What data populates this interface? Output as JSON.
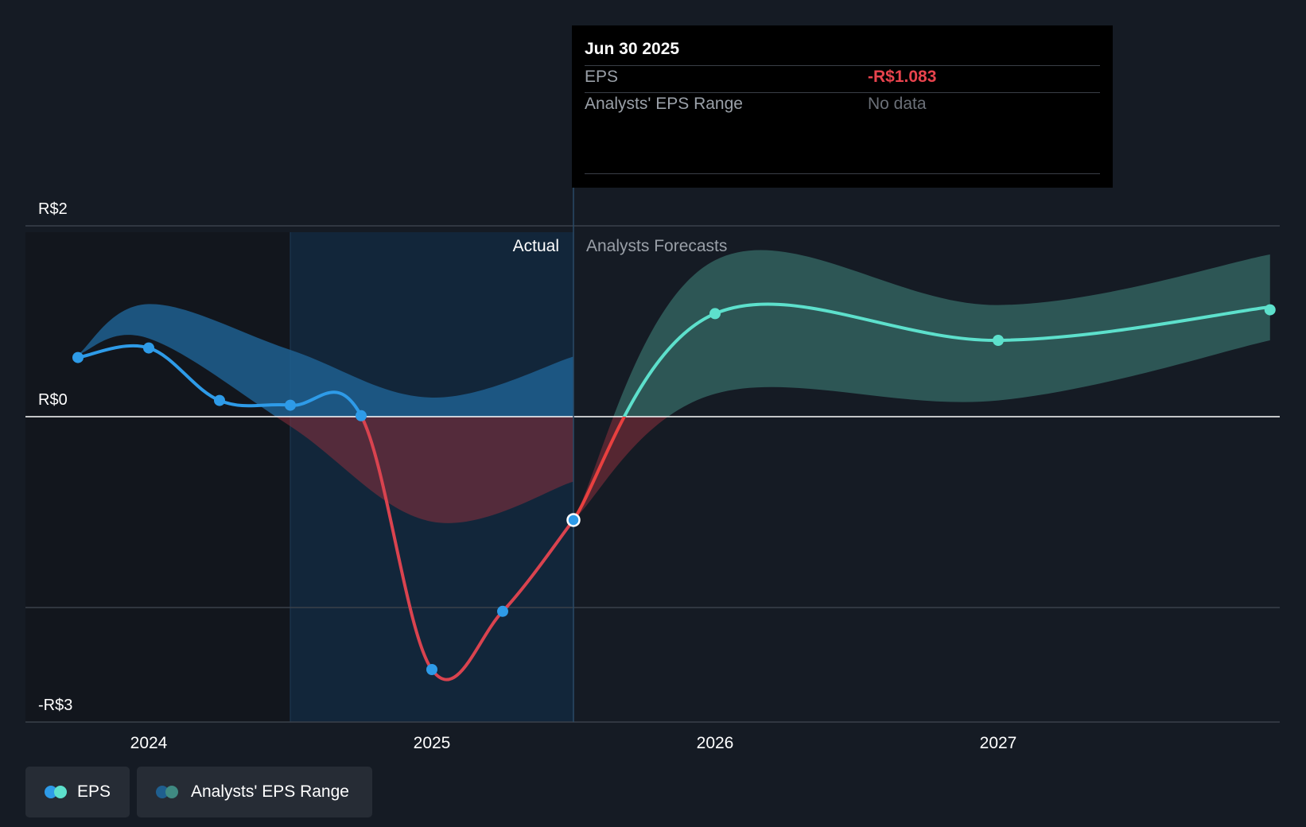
{
  "chart_data": {
    "type": "line",
    "title": "",
    "y_axis": {
      "min": -3,
      "max": 2,
      "ticks": [
        {
          "value": 2,
          "label": "R$2"
        },
        {
          "value": 0,
          "label": "R$0"
        },
        {
          "value": -3,
          "label": "-R$3"
        }
      ]
    },
    "x_axis": {
      "start": 2023.7,
      "end": 2027.95,
      "ticks": [
        {
          "value": 2024,
          "label": "2024"
        },
        {
          "value": 2025,
          "label": "2025"
        },
        {
          "value": 2026,
          "label": "2026"
        },
        {
          "value": 2027,
          "label": "2027"
        }
      ]
    },
    "shaded_region_start": 2024.5,
    "divider_x": 2025.5,
    "region_labels": {
      "actual": "Actual",
      "forecast": "Analysts Forecasts"
    },
    "series": [
      {
        "name": "EPS",
        "kind": "actual",
        "points": [
          {
            "x": 2023.75,
            "y": 0.62
          },
          {
            "x": 2024.0,
            "y": 0.72
          },
          {
            "x": 2024.25,
            "y": 0.17
          },
          {
            "x": 2024.5,
            "y": 0.12
          },
          {
            "x": 2024.75,
            "y": 0.01
          },
          {
            "x": 2025.0,
            "y": -2.65
          },
          {
            "x": 2025.25,
            "y": -2.04
          },
          {
            "x": 2025.5,
            "y": -1.083
          }
        ]
      },
      {
        "name": "EPS",
        "kind": "forecast",
        "points": [
          {
            "x": 2025.5,
            "y": -1.083
          },
          {
            "x": 2026.0,
            "y": 1.08
          },
          {
            "x": 2027.0,
            "y": 0.8
          },
          {
            "x": 2028.0,
            "y": 1.15
          }
        ]
      }
    ],
    "ranges": [
      {
        "name": "Analysts' EPS Range",
        "kind": "actual",
        "upper": [
          {
            "x": 2023.75,
            "y": 0.65
          },
          {
            "x": 2024.0,
            "y": 1.18
          },
          {
            "x": 2024.5,
            "y": 0.7
          },
          {
            "x": 2025.0,
            "y": 0.2
          },
          {
            "x": 2025.5,
            "y": 0.63
          }
        ],
        "lower": [
          {
            "x": 2023.75,
            "y": 0.65
          },
          {
            "x": 2024.0,
            "y": 0.82
          },
          {
            "x": 2024.5,
            "y": -0.1
          },
          {
            "x": 2025.0,
            "y": -1.1
          },
          {
            "x": 2025.5,
            "y": -0.68
          }
        ]
      },
      {
        "name": "Analysts' EPS Range",
        "kind": "forecast",
        "upper": [
          {
            "x": 2025.5,
            "y": -1.083
          },
          {
            "x": 2026.0,
            "y": 1.64
          },
          {
            "x": 2027.0,
            "y": 1.17
          },
          {
            "x": 2028.0,
            "y": 1.7
          }
        ],
        "lower": [
          {
            "x": 2025.5,
            "y": -1.083
          },
          {
            "x": 2026.0,
            "y": 0.24
          },
          {
            "x": 2027.0,
            "y": 0.17
          },
          {
            "x": 2028.0,
            "y": 0.8
          }
        ]
      }
    ],
    "highlight_point": {
      "x": 2025.5,
      "y": -1.083
    }
  },
  "tooltip": {
    "date": "Jun 30 2025",
    "rows": [
      {
        "label": "EPS",
        "value": "-R$1.083",
        "color": "#e8434d"
      },
      {
        "label": "Analysts' EPS Range",
        "value": "No data",
        "color": "#6b7078"
      }
    ]
  },
  "legend": {
    "items": [
      {
        "label": "EPS",
        "colors": [
          "#2e9be8",
          "#5de0cc"
        ]
      },
      {
        "label": "Analysts' EPS Range",
        "colors": [
          "#1f5f8f",
          "#3f8a82"
        ]
      }
    ]
  },
  "colors": {
    "actual_line": "#2e9be8",
    "forecast_line": "#5de0cc",
    "negative_line": "#d9434f",
    "actual_band": "#1f5f8f",
    "forecast_band": "#2e5a59",
    "negative_band": "#8a2f3d"
  }
}
